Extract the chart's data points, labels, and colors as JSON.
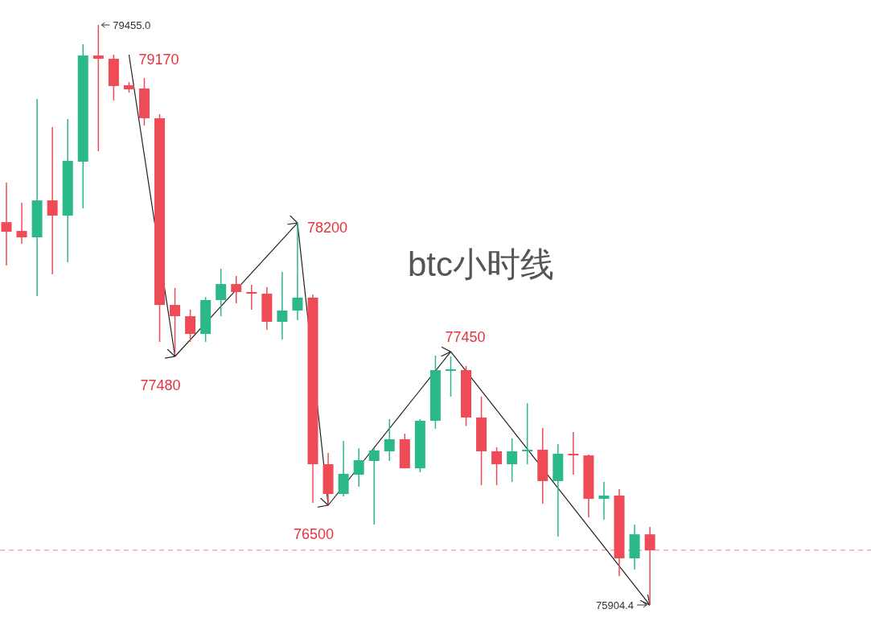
{
  "chart_data": {
    "type": "candlestick",
    "title": "btc小时线",
    "categories": [
      null,
      null,
      null,
      null,
      null,
      null,
      null,
      null,
      null,
      null,
      null,
      null,
      null,
      null,
      null,
      null,
      null,
      null,
      null,
      null,
      null,
      null,
      null,
      null,
      null,
      null,
      null,
      null,
      null,
      null,
      null,
      null,
      null,
      null,
      null,
      null,
      null,
      null,
      null,
      null,
      null,
      null,
      null
    ],
    "ohlc": [
      [
        78248,
        78490,
        77982,
        78189
      ],
      [
        78194,
        78367,
        78115,
        78155
      ],
      [
        78155,
        79002,
        77795,
        78381
      ],
      [
        78381,
        78830,
        77928,
        78288
      ],
      [
        78288,
        78879,
        78002,
        78623
      ],
      [
        78618,
        79337,
        78332,
        79268
      ],
      [
        79268,
        79455,
        78682,
        79248
      ],
      [
        79248,
        79273,
        78992,
        79081
      ],
      [
        79086,
        79105,
        79041,
        79061
      ],
      [
        79066,
        79130,
        78839,
        78884
      ],
      [
        78884,
        78908,
        77515,
        77741
      ],
      [
        77741,
        77845,
        77441,
        77672
      ],
      [
        77672,
        77712,
        77515,
        77564
      ],
      [
        77564,
        77790,
        77515,
        77771
      ],
      [
        77771,
        77963,
        77672,
        77869
      ],
      [
        77869,
        77918,
        77751,
        77820
      ],
      [
        77820,
        77864,
        77712,
        77810
      ],
      [
        77810,
        77850,
        77588,
        77638
      ],
      [
        77638,
        77943,
        77529,
        77707
      ],
      [
        77707,
        78243,
        77648,
        77786
      ],
      [
        77786,
        77805,
        76530,
        76766
      ],
      [
        76766,
        76835,
        76520,
        76584
      ],
      [
        76584,
        76909,
        76569,
        76707
      ],
      [
        76702,
        76864,
        76628,
        76791
      ],
      [
        76786,
        76864,
        76397,
        76850
      ],
      [
        76845,
        77042,
        76786,
        76919
      ],
      [
        76919,
        76953,
        76741,
        76741
      ],
      [
        76741,
        77042,
        76717,
        77032
      ],
      [
        77032,
        77431,
        76983,
        77342
      ],
      [
        77342,
        77426,
        77180,
        77347
      ],
      [
        77342,
        77367,
        77000,
        77052
      ],
      [
        77052,
        77180,
        76638,
        76845
      ],
      [
        76845,
        76869,
        76638,
        76766
      ],
      [
        76766,
        76924,
        76658,
        76845
      ],
      [
        76845,
        77140,
        76766,
        76855
      ],
      [
        76855,
        76988,
        76525,
        76663
      ],
      [
        76663,
        76889,
        76323,
        76830
      ],
      [
        76830,
        76963,
        76702,
        76820
      ],
      [
        76820,
        76825,
        76441,
        76554
      ],
      [
        76554,
        76658,
        76426,
        76574
      ],
      [
        76574,
        76613,
        76081,
        76190
      ],
      [
        76190,
        76397,
        76121,
        76337
      ],
      [
        76337,
        76382,
        75904.4,
        76239
      ]
    ],
    "colors": [
      "#ef4b56",
      "#ef4b56",
      "#2bb88b",
      "#ef4b56",
      "#2bb88b",
      "#2bb88b",
      "#ef4b56",
      "#ef4b56",
      "#ef4b56",
      "#ef4b56",
      "#ef4b56",
      "#ef4b56",
      "#ef4b56",
      "#2bb88b",
      "#2bb88b",
      "#ef4b56",
      "#ef4b56",
      "#ef4b56",
      "#2bb88b",
      "#2bb88b",
      "#ef4b56",
      "#ef4b56",
      "#2bb88b",
      "#2bb88b",
      "#2bb88b",
      "#2bb88b",
      "#ef4b56",
      "#2bb88b",
      "#2bb88b",
      "#2bb88b",
      "#ef4b56",
      "#ef4b56",
      "#ef4b56",
      "#2bb88b",
      "#2bb88b",
      "#ef4b56",
      "#2bb88b",
      "#ef4b56",
      "#ef4b56",
      "#2bb88b",
      "#ef4b56",
      "#2bb88b",
      "#ef4b56"
    ],
    "series": [
      {
        "type": "line",
        "color": "#222222",
        "values": [
          null,
          null,
          null,
          null,
          null,
          null,
          null,
          null,
          79273,
          null,
          null,
          77426,
          null,
          null,
          null,
          null,
          null,
          null,
          null,
          78243,
          null,
          76515,
          null,
          null,
          null,
          null,
          null,
          null,
          null,
          77455,
          null,
          null,
          null,
          null,
          null,
          null,
          null,
          null,
          null,
          null,
          null,
          null,
          75904
        ]
      }
    ],
    "ref_lines": [
      {
        "axis": "y",
        "value": 76240,
        "color": "#f07f8a",
        "line_style": "dashed"
      }
    ],
    "annotations": [
      "79455.0",
      "75904.4",
      "79170",
      "77480",
      "78200",
      "76500",
      "77450"
    ],
    "grid": false
  }
}
